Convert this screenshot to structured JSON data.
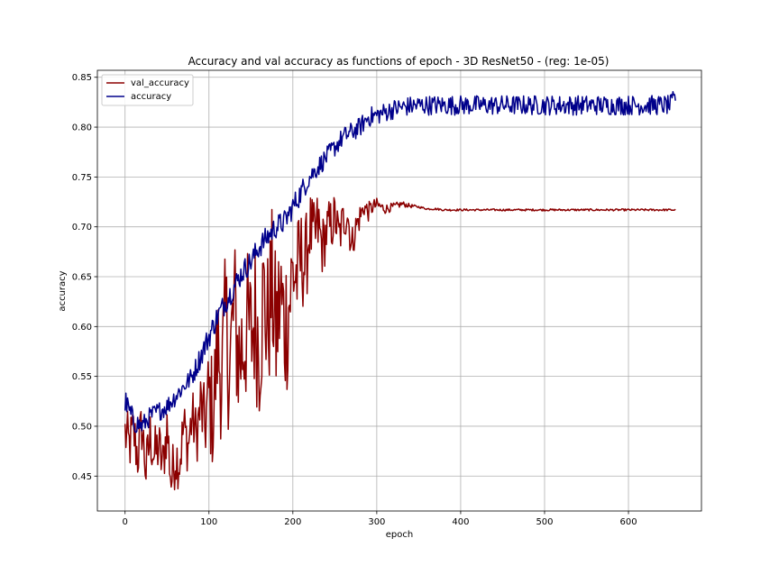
{
  "chart_data": {
    "type": "line",
    "title": "Accuracy and val accuracy as functions of epoch - 3D ResNet50 - (reg: 1e-05)",
    "xlabel": "epoch",
    "ylabel": "accuracy",
    "xlim": [
      -33,
      687
    ],
    "ylim": [
      0.415,
      0.857
    ],
    "xticks": [
      0,
      100,
      200,
      300,
      400,
      500,
      600
    ],
    "yticks": [
      0.45,
      0.5,
      0.55,
      0.6,
      0.65,
      0.7,
      0.75,
      0.8,
      0.85
    ],
    "grid": true,
    "legend_position": "top-left",
    "series": [
      {
        "name": "val_accuracy",
        "color": "#8b0000",
        "x": [
          0,
          5,
          10,
          15,
          20,
          25,
          30,
          35,
          40,
          45,
          50,
          55,
          60,
          65,
          70,
          75,
          80,
          85,
          90,
          95,
          100,
          105,
          110,
          115,
          120,
          125,
          130,
          135,
          140,
          145,
          150,
          155,
          160,
          165,
          170,
          175,
          180,
          185,
          190,
          195,
          200,
          205,
          210,
          215,
          220,
          225,
          230,
          235,
          240,
          245,
          250,
          255,
          260,
          265,
          270,
          275,
          280,
          285,
          290,
          295,
          300,
          310,
          320,
          330,
          340,
          350,
          360,
          370,
          380,
          400,
          450,
          500,
          550,
          600,
          650,
          656
        ],
        "values": [
          0.493,
          0.48,
          0.495,
          0.47,
          0.5,
          0.455,
          0.49,
          0.47,
          0.48,
          0.46,
          0.5,
          0.445,
          0.47,
          0.465,
          0.5,
          0.48,
          0.51,
          0.49,
          0.52,
          0.5,
          0.53,
          0.51,
          0.58,
          0.55,
          0.6,
          0.56,
          0.62,
          0.57,
          0.58,
          0.6,
          0.59,
          0.61,
          0.58,
          0.63,
          0.6,
          0.64,
          0.59,
          0.63,
          0.6,
          0.62,
          0.655,
          0.65,
          0.67,
          0.66,
          0.7,
          0.685,
          0.7,
          0.68,
          0.695,
          0.7,
          0.71,
          0.69,
          0.705,
          0.715,
          0.68,
          0.7,
          0.71,
          0.72,
          0.715,
          0.72,
          0.722,
          0.718,
          0.72,
          0.723,
          0.721,
          0.72,
          0.718,
          0.718,
          0.717,
          0.717,
          0.717,
          0.717,
          0.717,
          0.717,
          0.717,
          0.717
        ],
        "noise": [
          0.03,
          0.03,
          0.03,
          0.03,
          0.03,
          0.03,
          0.03,
          0.03,
          0.03,
          0.03,
          0.03,
          0.03,
          0.03,
          0.03,
          0.03,
          0.03,
          0.03,
          0.03,
          0.04,
          0.04,
          0.06,
          0.06,
          0.07,
          0.07,
          0.08,
          0.08,
          0.08,
          0.08,
          0.08,
          0.08,
          0.08,
          0.08,
          0.08,
          0.08,
          0.08,
          0.08,
          0.08,
          0.08,
          0.08,
          0.08,
          0.06,
          0.06,
          0.05,
          0.05,
          0.04,
          0.04,
          0.04,
          0.03,
          0.03,
          0.03,
          0.025,
          0.025,
          0.025,
          0.02,
          0.02,
          0.015,
          0.015,
          0.01,
          0.01,
          0.008,
          0.007,
          0.005,
          0.004,
          0.003,
          0.002,
          0.001,
          0.001,
          0.001,
          0.001,
          0.001,
          0.001,
          0.001,
          0.001,
          0.001,
          0.001,
          0.001
        ]
      },
      {
        "name": "accuracy",
        "color": "#00008b",
        "x": [
          0,
          10,
          20,
          30,
          40,
          50,
          60,
          70,
          80,
          90,
          100,
          110,
          120,
          130,
          140,
          150,
          160,
          170,
          180,
          190,
          200,
          210,
          220,
          230,
          240,
          250,
          260,
          270,
          280,
          290,
          300,
          310,
          320,
          330,
          340,
          350,
          400,
          450,
          500,
          550,
          600,
          650,
          656
        ],
        "values": [
          0.525,
          0.505,
          0.5,
          0.51,
          0.515,
          0.52,
          0.53,
          0.54,
          0.55,
          0.57,
          0.59,
          0.61,
          0.625,
          0.64,
          0.655,
          0.665,
          0.68,
          0.69,
          0.7,
          0.705,
          0.72,
          0.735,
          0.75,
          0.76,
          0.77,
          0.78,
          0.79,
          0.795,
          0.8,
          0.81,
          0.812,
          0.815,
          0.818,
          0.82,
          0.821,
          0.822,
          0.822,
          0.822,
          0.822,
          0.822,
          0.822,
          0.822,
          0.83
        ],
        "noise": [
          0.012,
          0.012,
          0.01,
          0.01,
          0.01,
          0.01,
          0.01,
          0.01,
          0.01,
          0.012,
          0.012,
          0.012,
          0.012,
          0.012,
          0.012,
          0.012,
          0.012,
          0.012,
          0.012,
          0.012,
          0.012,
          0.012,
          0.01,
          0.01,
          0.01,
          0.01,
          0.01,
          0.01,
          0.01,
          0.01,
          0.01,
          0.01,
          0.01,
          0.01,
          0.01,
          0.01,
          0.01,
          0.01,
          0.01,
          0.01,
          0.01,
          0.01,
          0.01
        ]
      }
    ]
  }
}
